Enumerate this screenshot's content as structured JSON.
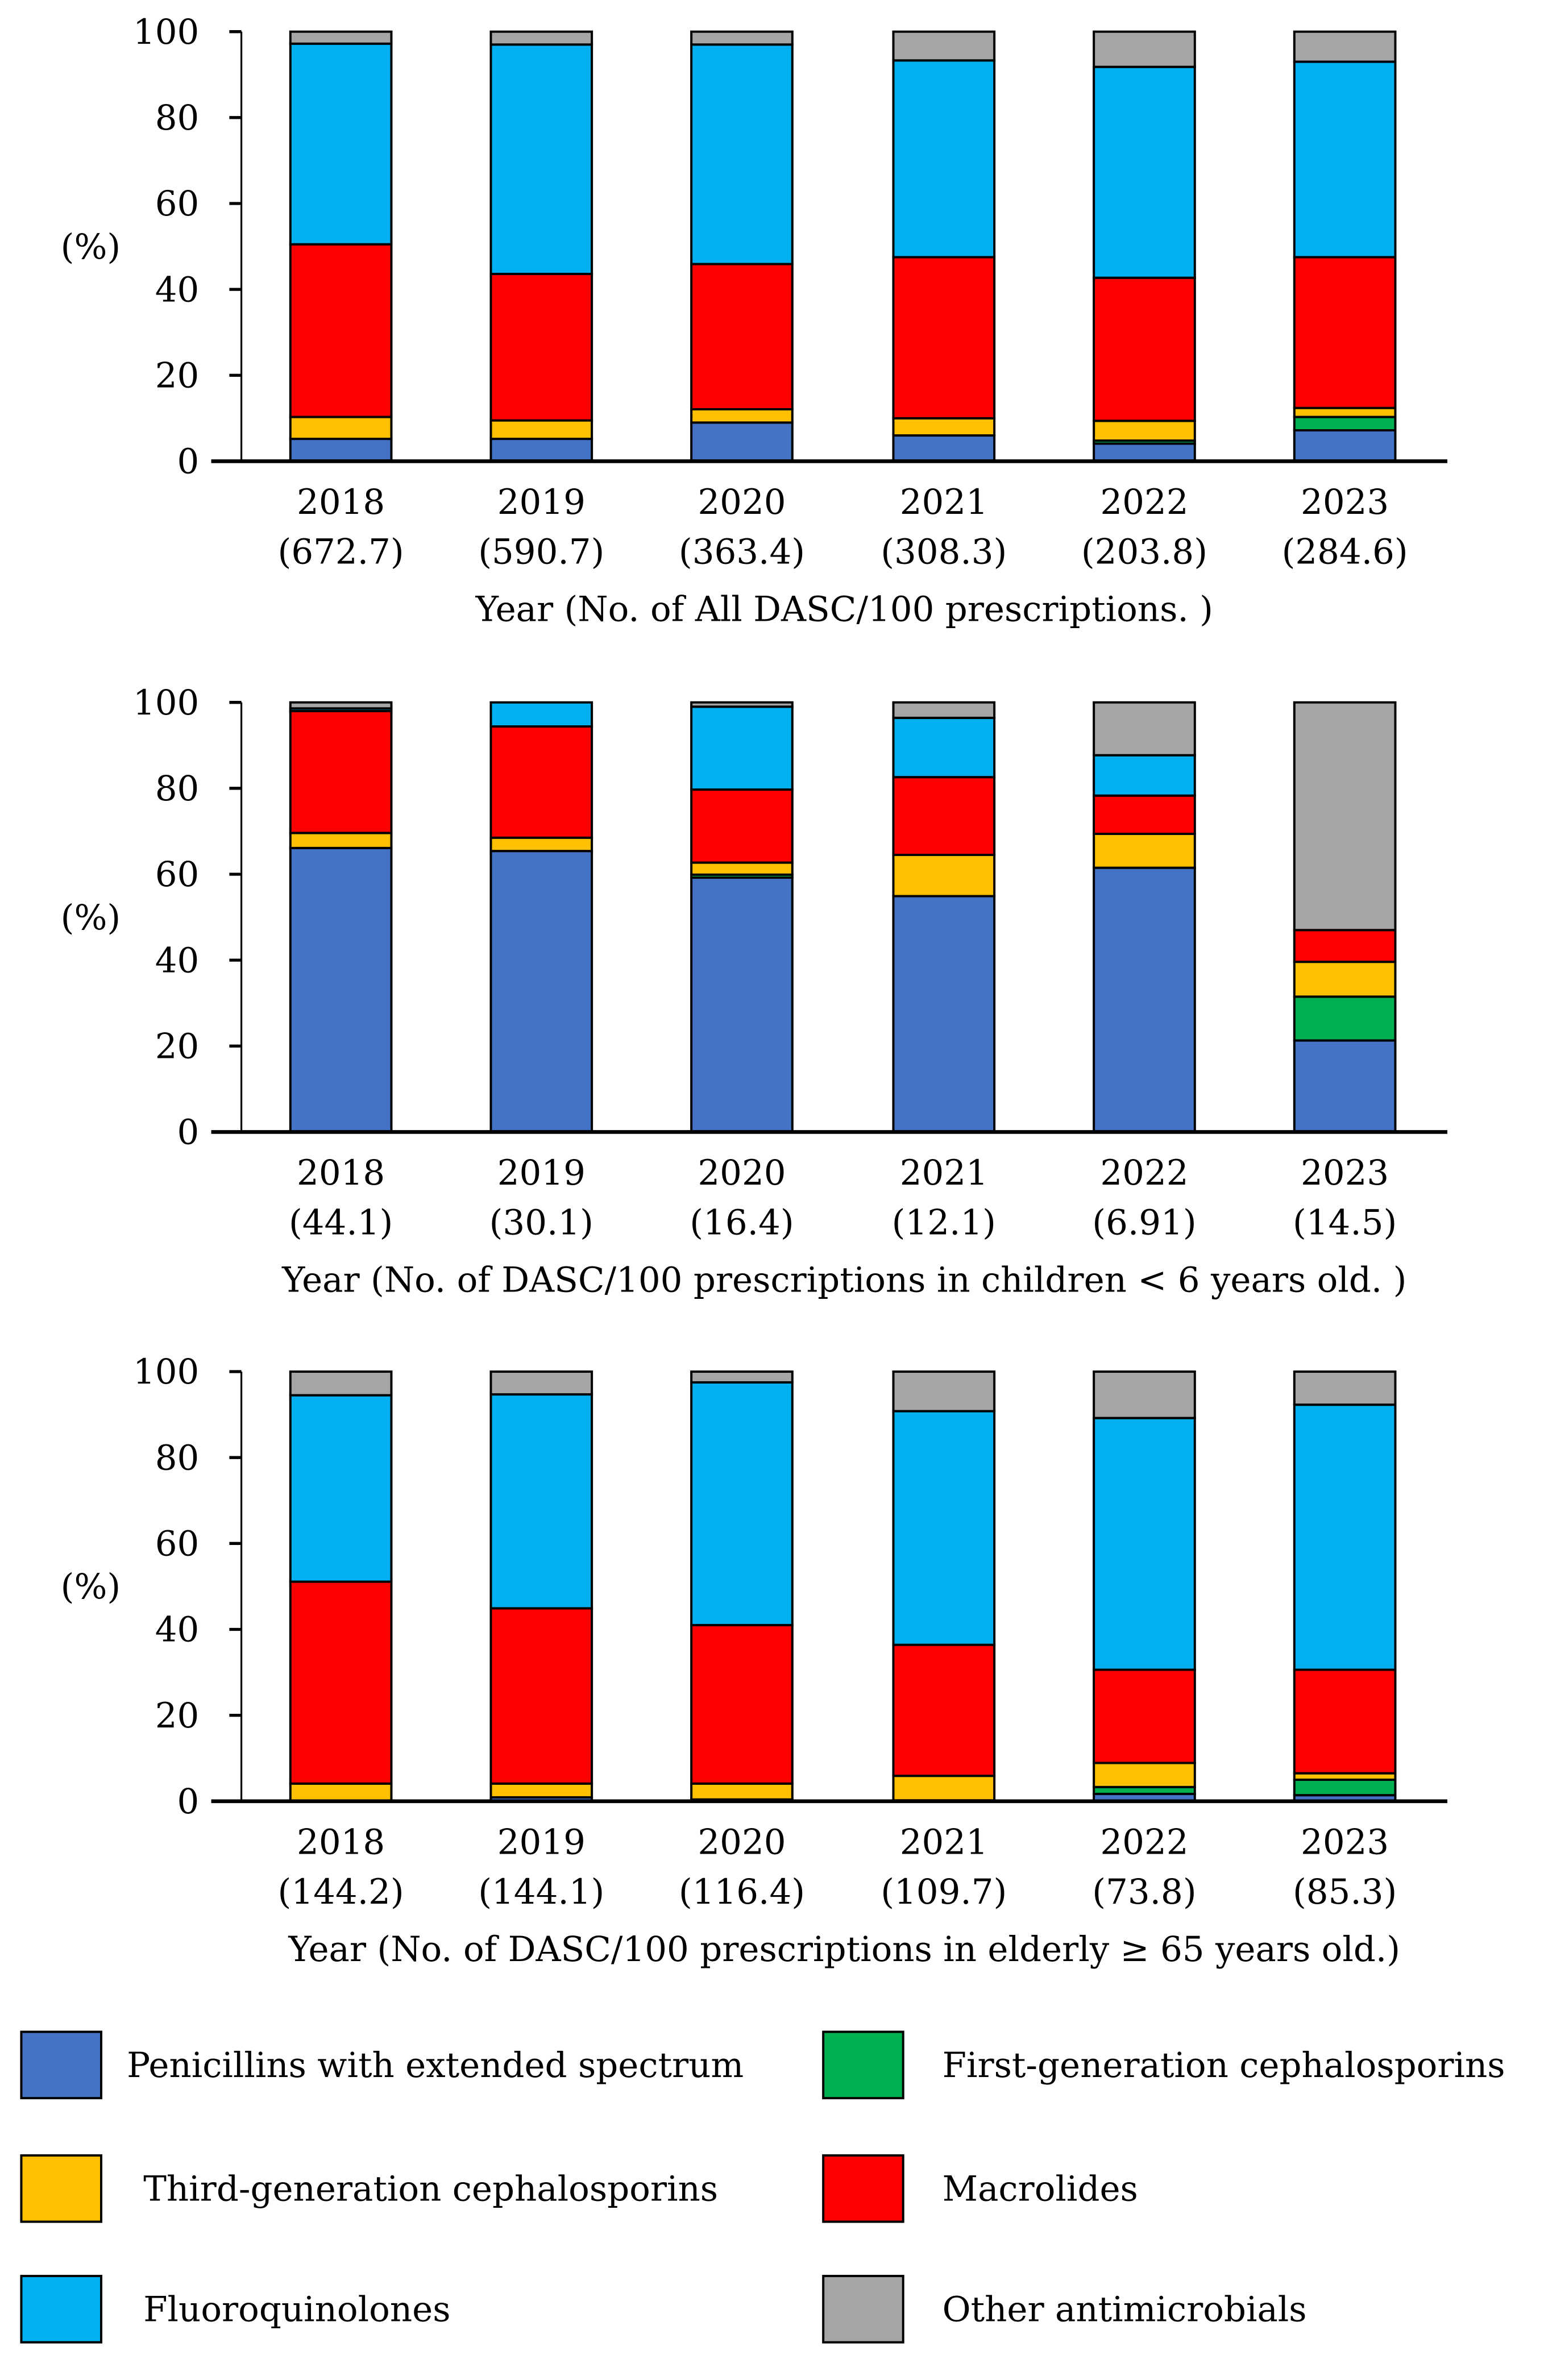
{
  "chart_data": [
    {
      "type": "bar",
      "stacked": true,
      "ylabel": "(%)",
      "xlabel": "Year (No. of All DASC/100 prescriptions. )",
      "ylim": [
        0,
        100
      ],
      "yticks": [
        "0",
        "20",
        "40",
        "60",
        "80",
        "100"
      ],
      "categories": [
        "2018",
        "2019",
        "2020",
        "2021",
        "2022",
        "2023"
      ],
      "counts": [
        "(672.7)",
        "(590.7)",
        "(363.4)",
        "(308.3)",
        "(203.8)",
        "(284.6)"
      ],
      "series": [
        {
          "name": "Penicillins with extended spectrum",
          "values": [
            5.2,
            5.2,
            9.0,
            6.0,
            4.1,
            7.2
          ]
        },
        {
          "name": "First-generation cephalosporins",
          "values": [
            0,
            0,
            0,
            0,
            0.7,
            3.1
          ]
        },
        {
          "name": "Third-generation cephalosporins",
          "values": [
            5.1,
            4.3,
            3.1,
            4.0,
            4.6,
            2.1
          ]
        },
        {
          "name": "Macrolides",
          "values": [
            40.2,
            34.1,
            33.8,
            37.5,
            33.3,
            35.1
          ]
        },
        {
          "name": "Fluoroquinolones",
          "values": [
            46.7,
            53.4,
            51.1,
            45.8,
            49.1,
            45.5
          ]
        },
        {
          "name": "Other antimicrobials",
          "values": [
            2.8,
            3.0,
            3.0,
            6.7,
            8.2,
            7.0
          ]
        }
      ]
    },
    {
      "type": "bar",
      "stacked": true,
      "ylabel": "(%)",
      "xlabel": "Year (No. of DASC/100 prescriptions in children < 6 years old. )",
      "ylim": [
        0,
        100
      ],
      "yticks": [
        "0",
        "20",
        "40",
        "60",
        "80",
        "100"
      ],
      "categories": [
        "2018",
        "2019",
        "2020",
        "2021",
        "2022",
        "2023"
      ],
      "counts": [
        "(44.1)",
        "(30.1)",
        "(16.4)",
        "(12.1)",
        "(6.91)",
        "(14.5)"
      ],
      "series": [
        {
          "name": "Penicillins with extended spectrum",
          "values": [
            66.1,
            65.4,
            59.2,
            54.9,
            61.5,
            21.3
          ]
        },
        {
          "name": "First-generation cephalosporins",
          "values": [
            0,
            0,
            0.7,
            0,
            0,
            10.2
          ]
        },
        {
          "name": "Third-generation cephalosporins",
          "values": [
            3.5,
            3.1,
            2.8,
            9.6,
            7.9,
            8.1
          ]
        },
        {
          "name": "Macrolides",
          "values": [
            28.4,
            25.9,
            17.0,
            18.1,
            8.9,
            7.4
          ]
        },
        {
          "name": "Fluoroquinolones",
          "values": [
            0.6,
            5.6,
            19.3,
            13.8,
            9.4,
            0
          ]
        },
        {
          "name": "Other antimicrobials",
          "values": [
            1.4,
            0,
            1.0,
            3.6,
            12.3,
            53.0
          ]
        }
      ]
    },
    {
      "type": "bar",
      "stacked": true,
      "ylabel": "(%)",
      "xlabel": "Year (No. of DASC/100 prescriptions in elderly ≥ 65 years old.)",
      "ylim": [
        0,
        100
      ],
      "yticks": [
        "0",
        "20",
        "40",
        "60",
        "80",
        "100"
      ],
      "categories": [
        "2018",
        "2019",
        "2020",
        "2021",
        "2022",
        "2023"
      ],
      "counts": [
        "(144.2)",
        "(144.1)",
        "(116.4)",
        "(109.7)",
        "(73.8)",
        "(85.3)"
      ],
      "series": [
        {
          "name": "Penicillins with extended spectrum",
          "values": [
            0,
            0.9,
            0.4,
            0.2,
            1.7,
            1.4
          ]
        },
        {
          "name": "First-generation cephalosporins",
          "values": [
            0,
            0,
            0,
            0,
            1.6,
            3.6
          ]
        },
        {
          "name": "Third-generation cephalosporins",
          "values": [
            4.1,
            3.2,
            3.7,
            5.7,
            5.6,
            1.5
          ]
        },
        {
          "name": "Macrolides",
          "values": [
            47.0,
            40.8,
            36.9,
            30.5,
            21.7,
            24.1
          ]
        },
        {
          "name": "Fluoroquinolones",
          "values": [
            43.4,
            49.8,
            56.5,
            54.4,
            58.6,
            61.7
          ]
        },
        {
          "name": "Other antimicrobials",
          "values": [
            5.5,
            5.3,
            2.5,
            9.2,
            10.8,
            7.7
          ]
        }
      ]
    }
  ],
  "colors": [
    "#4472C4",
    "#00B050",
    "#FFC000",
    "#FF0000",
    "#00B0F0",
    "#A5A5A5"
  ],
  "legend": [
    {
      "label": "Penicillins with extended spectrum",
      "color": "#4472C4"
    },
    {
      "label": "First-generation cephalosporins",
      "color": "#00B050"
    },
    {
      "label": "Third-generation cephalosporins",
      "color": "#FFC000"
    },
    {
      "label": "Macrolides",
      "color": "#FF0000"
    },
    {
      "label": "Fluoroquinolones",
      "color": "#00B0F0"
    },
    {
      "label": "Other antimicrobials",
      "color": "#A5A5A5"
    }
  ]
}
